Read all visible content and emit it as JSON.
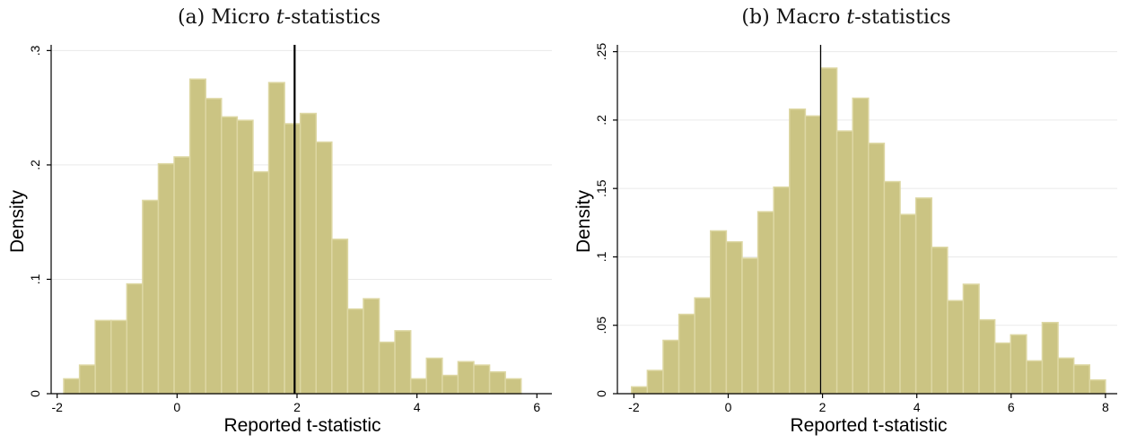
{
  "chart_data": [
    {
      "type": "bar",
      "title_prefix": "(a) Micro ",
      "title_italic": "t",
      "title_suffix": "-statistics",
      "xlabel": "Reported t-statistic",
      "ylabel": "Density",
      "xlim": [
        -2.1,
        6.25
      ],
      "ylim": [
        0,
        0.305
      ],
      "x_ticks": [
        -2,
        0,
        2,
        4,
        6
      ],
      "x_tick_labels": [
        "-2",
        "0",
        "2",
        "4",
        "6"
      ],
      "y_ticks": [
        0,
        0.1,
        0.2,
        0.3
      ],
      "y_tick_labels": [
        "0",
        ".1",
        ".2",
        ".3"
      ],
      "grid": true,
      "bin_width": 0.263,
      "bin_start": -1.89,
      "values": [
        0.013,
        0.025,
        0.064,
        0.064,
        0.096,
        0.169,
        0.201,
        0.207,
        0.275,
        0.258,
        0.242,
        0.239,
        0.194,
        0.272,
        0.236,
        0.245,
        0.22,
        0.135,
        0.074,
        0.083,
        0.045,
        0.055,
        0.013,
        0.031,
        0.016,
        0.028,
        0.025,
        0.019,
        0.013
      ],
      "reference_line_x": 1.96,
      "reference_line_width": 2.2
    },
    {
      "type": "bar",
      "title_prefix": "(b) Macro ",
      "title_italic": "t",
      "title_suffix": "-statistics",
      "xlabel": "Reported t-statistic",
      "ylabel": "Density",
      "xlim": [
        -2.35,
        8.25
      ],
      "ylim": [
        0,
        0.255
      ],
      "x_ticks": [
        -2,
        0,
        2,
        4,
        6,
        8
      ],
      "x_tick_labels": [
        "-2",
        "0",
        "2",
        "4",
        "6",
        "8"
      ],
      "y_ticks": [
        0,
        0.05,
        0.1,
        0.15,
        0.2,
        0.25
      ],
      "y_tick_labels": [
        "0",
        ".05",
        ".1",
        ".15",
        ".2",
        ".25"
      ],
      "grid": true,
      "bin_width": 0.335,
      "bin_start": -2.05,
      "values": [
        0.005,
        0.017,
        0.039,
        0.058,
        0.07,
        0.119,
        0.111,
        0.099,
        0.133,
        0.151,
        0.208,
        0.203,
        0.238,
        0.192,
        0.216,
        0.183,
        0.155,
        0.131,
        0.143,
        0.107,
        0.068,
        0.08,
        0.054,
        0.037,
        0.043,
        0.024,
        0.052,
        0.026,
        0.021,
        0.01
      ],
      "reference_line_x": 1.96,
      "reference_line_width": 1.3
    }
  ],
  "colors": {
    "bar_fill": "#cbc483",
    "bar_edge": "#ddd7a3",
    "reference_line": "#000000"
  }
}
